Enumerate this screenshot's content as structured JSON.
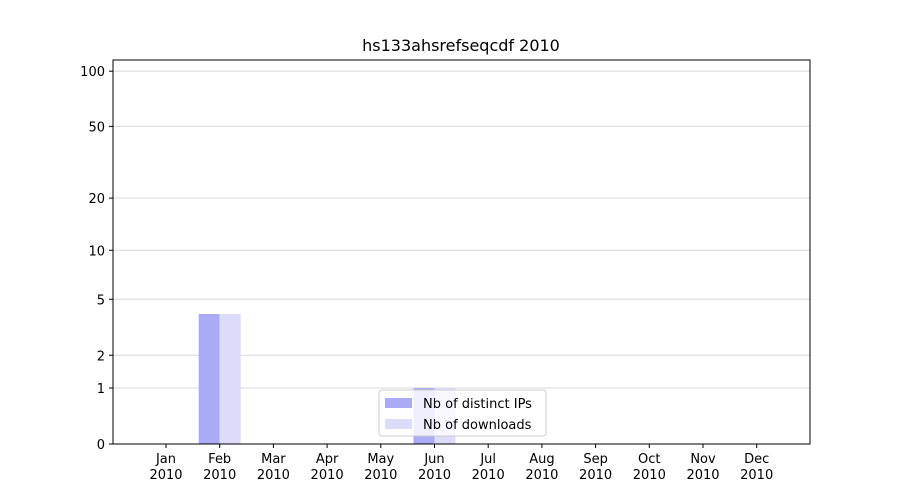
{
  "chart_data": {
    "type": "bar",
    "title": "hs133ahsrefseqcdf 2010",
    "categories": [
      "Jan\n2010",
      "Feb\n2010",
      "Mar\n2010",
      "Apr\n2010",
      "May\n2010",
      "Jun\n2010",
      "Jul\n2010",
      "Aug\n2010",
      "Sep\n2010",
      "Oct\n2010",
      "Nov\n2010",
      "Dec\n2010"
    ],
    "series": [
      {
        "name": "Nb of distinct IPs",
        "color": "#aaaaf5",
        "values": [
          0,
          4,
          0,
          0,
          0,
          1,
          0,
          0,
          0,
          0,
          0,
          0
        ]
      },
      {
        "name": "Nb of downloads",
        "color": "#dcdcfa",
        "values": [
          0,
          4,
          0,
          0,
          0,
          1,
          0,
          0,
          0,
          0,
          0,
          0
        ]
      }
    ],
    "yscale": "log1p",
    "ylim": [
      0,
      115
    ],
    "yticks": [
      0,
      1,
      2,
      5,
      10,
      20,
      50,
      100
    ],
    "grid": true,
    "legend": "lower center"
  }
}
